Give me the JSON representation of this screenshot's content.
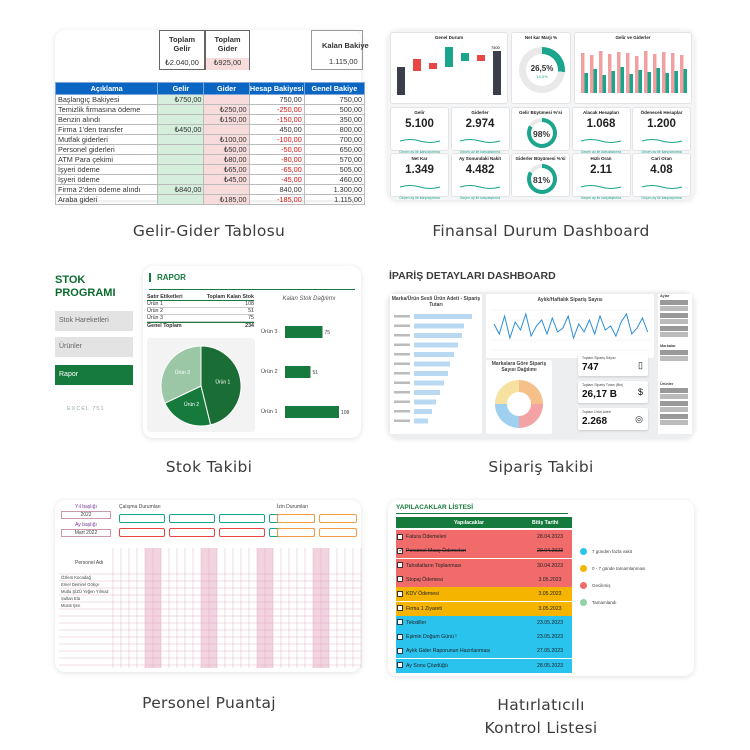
{
  "captions": {
    "c1": "Gelir-Gider Tablosu",
    "c2": "Finansal Durum Dashboard",
    "c3": "Stok Takibi",
    "c4": "Sipariş Takibi",
    "c5": "Personel Puantaj",
    "c6a": "Hatırlatıcılı",
    "c6b": "Kontrol Listesi"
  },
  "gelir_gider": {
    "toplam_gelir_label": "Toplam Gelir",
    "toplam_gider_label": "Toplam Gider",
    "kalan_label": "Kalan Bakiye",
    "toplam_gelir": "₺2.040,00",
    "toplam_gider": "₺925,00",
    "kalan": "1.115,00",
    "headers": [
      "Açıklama",
      "Gelir",
      "Gider",
      "Hesap Bakiyesi",
      "Genel Bakiye"
    ],
    "rows": [
      {
        "a": "Başlangıç Bakiyesi",
        "gelir": "₺750,00",
        "gider": "",
        "hesap": "750,00",
        "genel": "750,00"
      },
      {
        "a": "Temizlik firmasına ödeme",
        "gelir": "",
        "gider": "₺250,00",
        "hesap": "-250,00",
        "genel": "500,00"
      },
      {
        "a": "Benzin alındı",
        "gelir": "",
        "gider": "₺150,00",
        "hesap": "-150,00",
        "genel": "350,00"
      },
      {
        "a": "Firma 1'den transfer",
        "gelir": "₺450,00",
        "gider": "",
        "hesap": "450,00",
        "genel": "800,00"
      },
      {
        "a": "Mutfak giderleri",
        "gelir": "",
        "gider": "₺100,00",
        "hesap": "-100,00",
        "genel": "700,00"
      },
      {
        "a": "Personel giderleri",
        "gelir": "",
        "gider": "₺50,00",
        "hesap": "-50,00",
        "genel": "650,00"
      },
      {
        "a": "ATM Para çekimi",
        "gelir": "",
        "gider": "₺80,00",
        "hesap": "-80,00",
        "genel": "570,00"
      },
      {
        "a": "İşyeri ödeme",
        "gelir": "",
        "gider": "₺65,00",
        "hesap": "-65,00",
        "genel": "505,00"
      },
      {
        "a": "İşyeri ödeme",
        "gelir": "",
        "gider": "₺45,00",
        "hesap": "-45,00",
        "genel": "460,00"
      },
      {
        "a": "Firma 2'den ödeme alındı",
        "gelir": "₺840,00",
        "gider": "",
        "hesap": "840,00",
        "genel": "1.300,00"
      },
      {
        "a": "Araba gideri",
        "gelir": "",
        "gider": "₺185,00",
        "hesap": "-185,00",
        "genel": "1.115,00"
      }
    ]
  },
  "finans": {
    "panels": [
      "Genel Durum",
      "Net kar Marjı %",
      "Gelir ve Giderler"
    ],
    "donut_big": "26,5%",
    "donut_big_sub": "14,3%",
    "kpis_row1": [
      {
        "title": "Gelir",
        "value": "5.100"
      },
      {
        "title": "Giderler",
        "value": "2.974"
      },
      {
        "title": "Gelir Büyümesi %'si",
        "value": "98%"
      },
      {
        "title": "Alacak Hesapları",
        "value": "1.068"
      },
      {
        "title": "Ödenecek Hesaplar",
        "value": "1.200"
      }
    ],
    "kpis_row2": [
      {
        "title": "Net Kar",
        "value": "1.349"
      },
      {
        "title": "Ay Sonundaki Nakit",
        "value": "4.482"
      },
      {
        "title": "Giderler Büyümesi %'si",
        "value": "81%"
      },
      {
        "title": "Hızlı Oran",
        "value": "2.11"
      },
      {
        "title": "Cari Oran",
        "value": "4.08"
      }
    ],
    "kpi_sub": "Geçen ay ile karşılaştırma",
    "waterfall_value": "7500"
  },
  "stok": {
    "title_line1": "STOK",
    "title_line2": "PROGRAMI",
    "menu": [
      "Stok Hareketleri",
      "Ürünler",
      "Rapor"
    ],
    "logo": "EXCEL 751",
    "rapor_title": "RAPOR",
    "table_headers": [
      "Satır Etiketleri",
      "Toplam Kalan Stok"
    ],
    "table_rows": [
      {
        "label": "Ürün 1",
        "value": "108"
      },
      {
        "label": "Ürün 2",
        "value": "51"
      },
      {
        "label": "Ürün 3",
        "value": "75"
      }
    ],
    "total_label": "Genel Toplam",
    "total_value": "234",
    "chart_title": "Kalan Stok Dağılımı"
  },
  "siparis": {
    "title": "İPARİŞ DETAYLARI DASHBOARD",
    "bar_title": "Marka/Ürün Sesli Ürün Adeti - Sipariş Tutarı",
    "line_title": "Aylık/Haftalık Sipariş Sayısı",
    "pie_title": "Markalara Göre Sipariş Sayısı Dağılımı",
    "kpis": [
      {
        "label": "Toplam Sipariş Sayısı",
        "value": "747",
        "icon": "phone-icon"
      },
      {
        "label": "Toplam Sipariş Tutarı (Bin)",
        "value": "26,17 B",
        "icon": "dollar-icon"
      },
      {
        "label": "Toplam Ürün Adeti",
        "value": "2.268",
        "icon": "target-icon"
      }
    ],
    "side_sections": [
      "Aylar",
      "Markalar",
      "Ürünler"
    ]
  },
  "puantaj": {
    "labels": [
      "Yıl başlığı",
      "Ay başlığı"
    ],
    "year": "2022",
    "month": "Mart 2022",
    "work_title": "Çalışma Durumları",
    "absence_title": "İzin Durumları",
    "header": "Personel Adı",
    "people": [
      "Özlem Kocadağ",
      "Emel Demirel Gökçe",
      "Mutlu ŞİZÜ Yeğen Yılmaz",
      "Sultan Ela",
      "Murat Şen"
    ]
  },
  "yapilacak": {
    "title": "YAPILACAKLAR LİSTESİ",
    "col_task": "Yapılacaklar",
    "col_date": "Bitiş Tarihi",
    "rows": [
      {
        "task": "Fatura Ödemeleri",
        "date": "28.04.2023",
        "color": "#f26b6b",
        "checked": false,
        "strike": false
      },
      {
        "task": "Personel Maaş Ödemeleri",
        "date": "29.04.2023",
        "color": "#f26b6b",
        "checked": true,
        "strike": true
      },
      {
        "task": "Tahsilatların Toplanması",
        "date": "30.04.2023",
        "color": "#f26b6b",
        "checked": false,
        "strike": false
      },
      {
        "task": "Stopaj Ödemesi",
        "date": "3.05.2023",
        "color": "#f26b6b",
        "checked": false,
        "strike": false
      },
      {
        "task": "KDV Ödemesi",
        "date": "3.05.2023",
        "color": "#f4b400",
        "checked": false,
        "strike": false
      },
      {
        "task": "Firma 1 Ziyareti",
        "date": "3.05.2023",
        "color": "#f4b400",
        "checked": false,
        "strike": false
      },
      {
        "task": "Tekstiller",
        "date": "23.05.2023",
        "color": "#29c3ee",
        "checked": false,
        "strike": false
      },
      {
        "task": "Eşimin Doğum Günü !",
        "date": "23.05.2023",
        "color": "#29c3ee",
        "checked": false,
        "strike": false
      },
      {
        "task": "Aylık Gider Raporunun Hazırlanması",
        "date": "27.05.2023",
        "color": "#29c3ee",
        "checked": false,
        "strike": false
      },
      {
        "task": "Ay Sonu Çözdüğü",
        "date": "28.05.2023",
        "color": "#29c3ee",
        "checked": false,
        "strike": false
      }
    ],
    "legend": [
      {
        "label": "7 günden fazla vakit",
        "color": "#29c3ee"
      },
      {
        "label": "0 - 7 günde tamamlanması",
        "color": "#f4b400"
      },
      {
        "label": "Gecikmiş",
        "color": "#f26b6b"
      },
      {
        "label": "Tamamlandı",
        "color": "#8fd3a0"
      }
    ]
  }
}
